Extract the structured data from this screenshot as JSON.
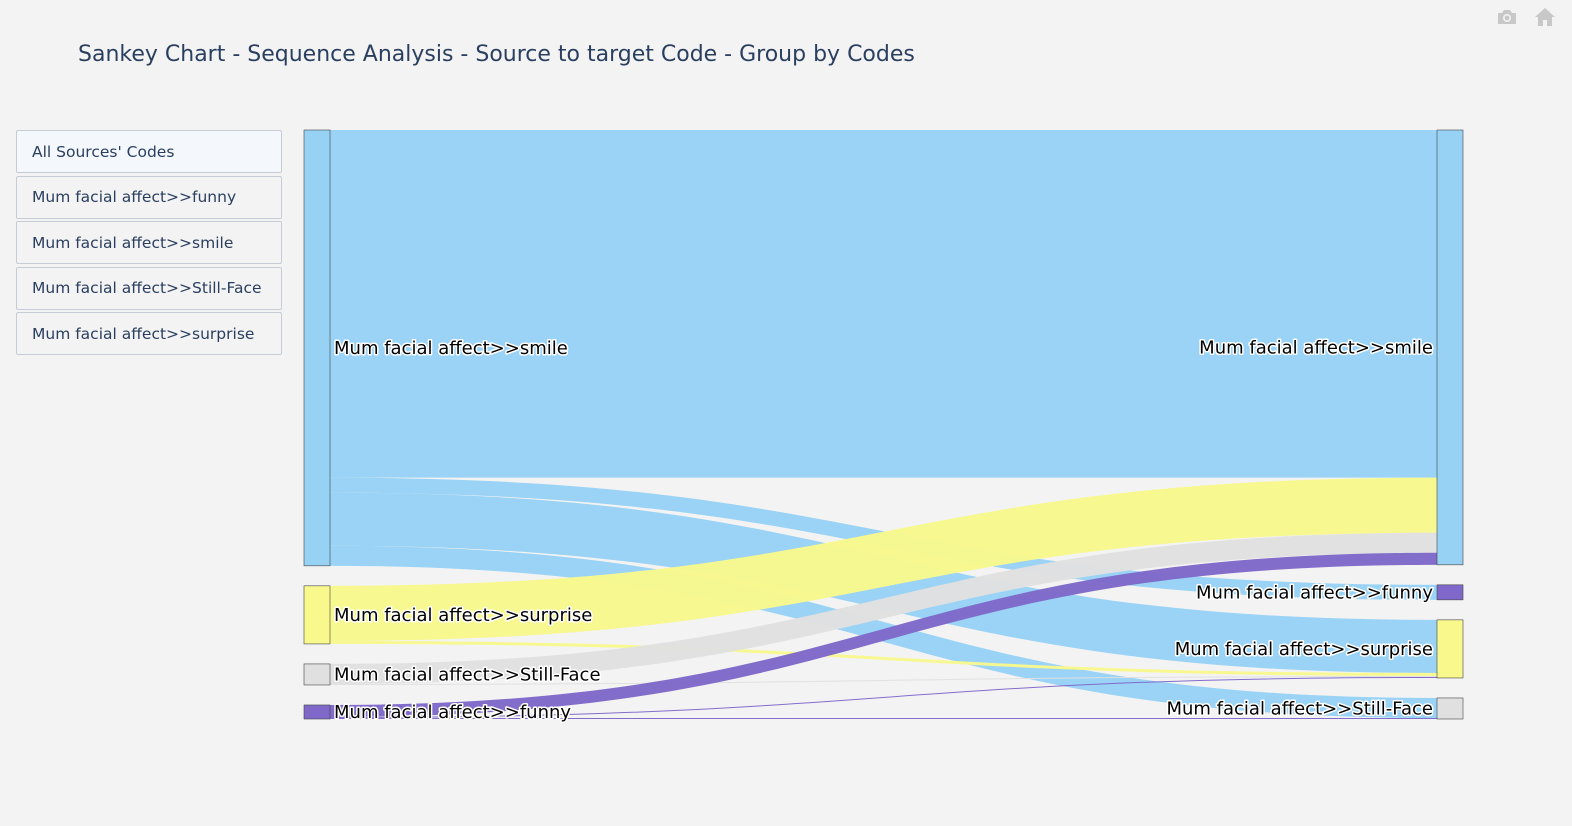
{
  "title": "Sankey Chart - Sequence Analysis - Source to target Code - Group by Codes",
  "modebar": {
    "icons": [
      "camera-icon",
      "home-icon"
    ]
  },
  "menu": {
    "items": [
      "All Sources' Codes",
      "Mum facial affect>>funny",
      "Mum facial affect>>smile",
      "Mum facial affect>>Still-Face",
      "Mum facial affect>>surprise"
    ],
    "active_index": 0
  },
  "chart_data": {
    "type": "sankey",
    "title": "Sankey Chart - Sequence Analysis - Source to target Code - Group by Codes",
    "colors": {
      "Mum facial affect>>smile": "#97d2f5",
      "Mum facial affect>>surprise": "#f8f88d",
      "Mum facial affect>>Still-Face": "#e0e0e0",
      "Mum facial affect>>funny": "#7f68c9"
    },
    "sources": [
      "Mum facial affect>>smile",
      "Mum facial affect>>surprise",
      "Mum facial affect>>Still-Face",
      "Mum facial affect>>funny"
    ],
    "targets": [
      "Mum facial affect>>smile",
      "Mum facial affect>>funny",
      "Mum facial affect>>surprise",
      "Mum facial affect>>Still-Face"
    ],
    "links": [
      {
        "source": "Mum facial affect>>smile",
        "target": "Mum facial affect>>smile",
        "value": 347
      },
      {
        "source": "Mum facial affect>>smile",
        "target": "Mum facial affect>>funny",
        "value": 15
      },
      {
        "source": "Mum facial affect>>smile",
        "target": "Mum facial affect>>surprise",
        "value": 53
      },
      {
        "source": "Mum facial affect>>smile",
        "target": "Mum facial affect>>Still-Face",
        "value": 20
      },
      {
        "source": "Mum facial affect>>surprise",
        "target": "Mum facial affect>>smile",
        "value": 55
      },
      {
        "source": "Mum facial affect>>surprise",
        "target": "Mum facial affect>>surprise",
        "value": 3
      },
      {
        "source": "Mum facial affect>>Still-Face",
        "target": "Mum facial affect>>smile",
        "value": 20
      },
      {
        "source": "Mum facial affect>>Still-Face",
        "target": "Mum facial affect>>surprise",
        "value": 1
      },
      {
        "source": "Mum facial affect>>funny",
        "target": "Mum facial affect>>smile",
        "value": 12
      },
      {
        "source": "Mum facial affect>>funny",
        "target": "Mum facial affect>>surprise",
        "value": 1
      },
      {
        "source": "Mum facial affect>>funny",
        "target": "Mum facial affect>>Still-Face",
        "value": 1
      }
    ]
  }
}
